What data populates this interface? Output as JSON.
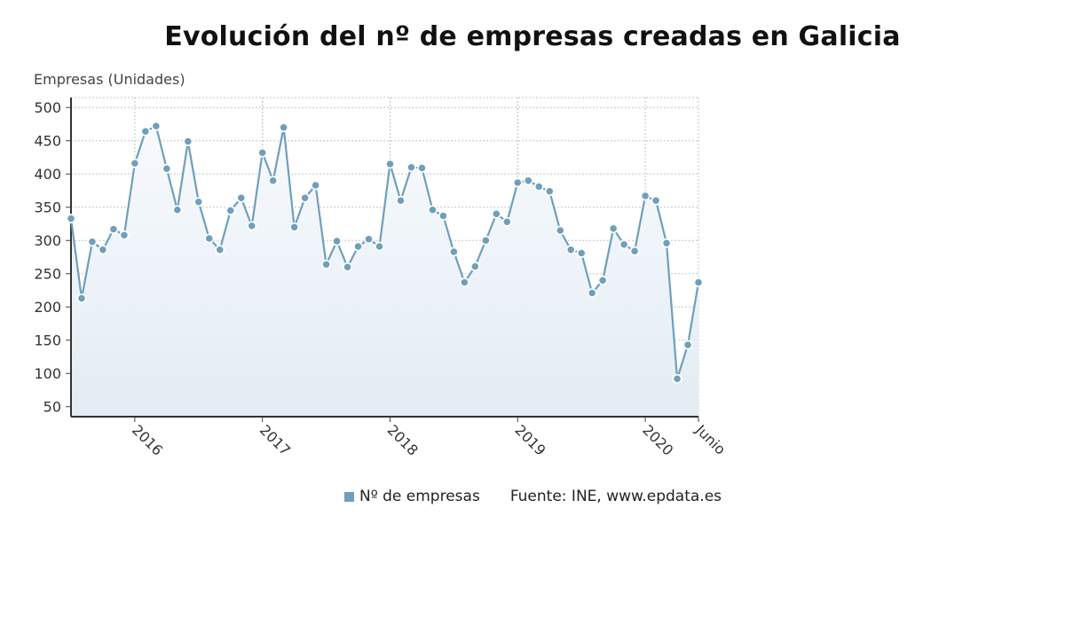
{
  "chart_data": {
    "type": "line",
    "title": "Evolución del nº de empresas creadas en Galicia",
    "ylabel": "Empresas (Unidades)",
    "ylim": [
      35,
      515
    ],
    "yticks": [
      50,
      100,
      150,
      200,
      250,
      300,
      350,
      400,
      450,
      500
    ],
    "x_start": "2015-07",
    "x_end": "2020-06",
    "xtick_labels": [
      {
        "label": "2016",
        "date": "2016-01"
      },
      {
        "label": "2017",
        "date": "2017-01"
      },
      {
        "label": "2018",
        "date": "2018-01"
      },
      {
        "label": "2019",
        "date": "2019-01"
      },
      {
        "label": "2020",
        "date": "2020-01"
      },
      {
        "label": "Junio",
        "date": "2020-06"
      }
    ],
    "grid": true,
    "color": "#6f9fbb",
    "series": [
      {
        "name": "Nº de empresas",
        "values": [
          333,
          213,
          298,
          286,
          317,
          308,
          416,
          464,
          472,
          408,
          346,
          449,
          358,
          303,
          286,
          345,
          364,
          322,
          432,
          390,
          470,
          320,
          364,
          383,
          264,
          299,
          260,
          291,
          302,
          291,
          415,
          360,
          410,
          409,
          346,
          337,
          283,
          237,
          261,
          300,
          340,
          328,
          387,
          390,
          381,
          374,
          315,
          286,
          281,
          221,
          240,
          318,
          294,
          284,
          367,
          360,
          296,
          92,
          143,
          237
        ]
      }
    ]
  },
  "legend": {
    "series_label": "Nº de empresas",
    "source": "Fuente: INE, www.epdata.es"
  }
}
